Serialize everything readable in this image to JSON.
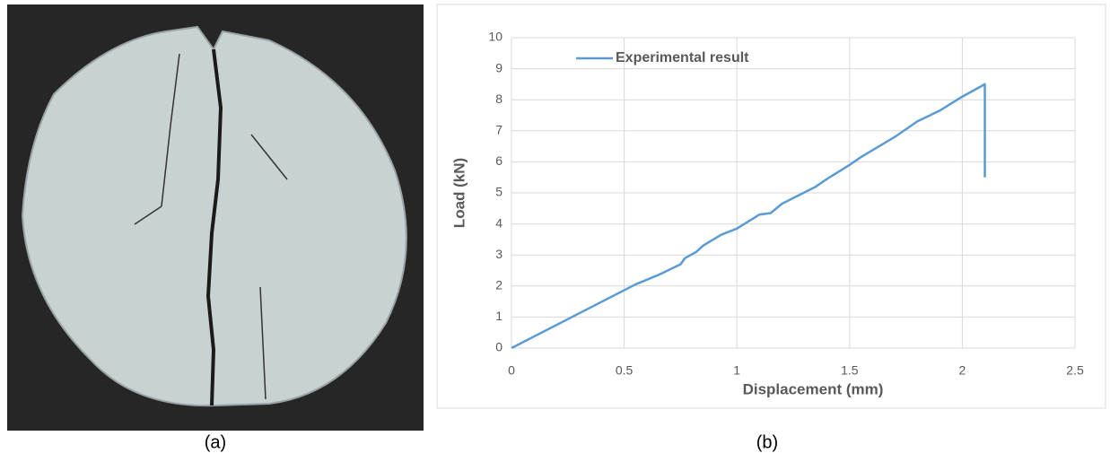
{
  "chart_data": {
    "type": "line",
    "x_label": "Displacement (mm)",
    "y_label": "Load (kN)",
    "x": [
      0,
      0.55,
      0.65,
      0.75,
      0.77,
      0.82,
      0.85,
      0.93,
      1.0,
      1.1,
      1.15,
      1.2,
      1.35,
      1.4,
      1.5,
      1.55,
      1.7,
      1.8,
      1.9,
      2.0,
      2.1,
      2.1
    ],
    "series": [
      {
        "name": "Experimental result",
        "color": "#5b9bd5",
        "values": [
          0,
          2.05,
          2.35,
          2.7,
          2.9,
          3.1,
          3.3,
          3.65,
          3.85,
          4.3,
          4.35,
          4.65,
          5.2,
          5.45,
          5.9,
          6.15,
          6.8,
          7.3,
          7.65,
          8.1,
          8.5,
          5.5
        ]
      }
    ],
    "xlim": [
      0,
      2.5
    ],
    "xticks": [
      0,
      0.5,
      1,
      1.5,
      2,
      2.5
    ],
    "ylim": [
      0,
      10
    ],
    "yticks": [
      0,
      1,
      2,
      3,
      4,
      5,
      6,
      7,
      8,
      9,
      10
    ],
    "grid": true,
    "legend": "top-left"
  },
  "panels": {
    "a": "(a)",
    "b": "(b)"
  }
}
